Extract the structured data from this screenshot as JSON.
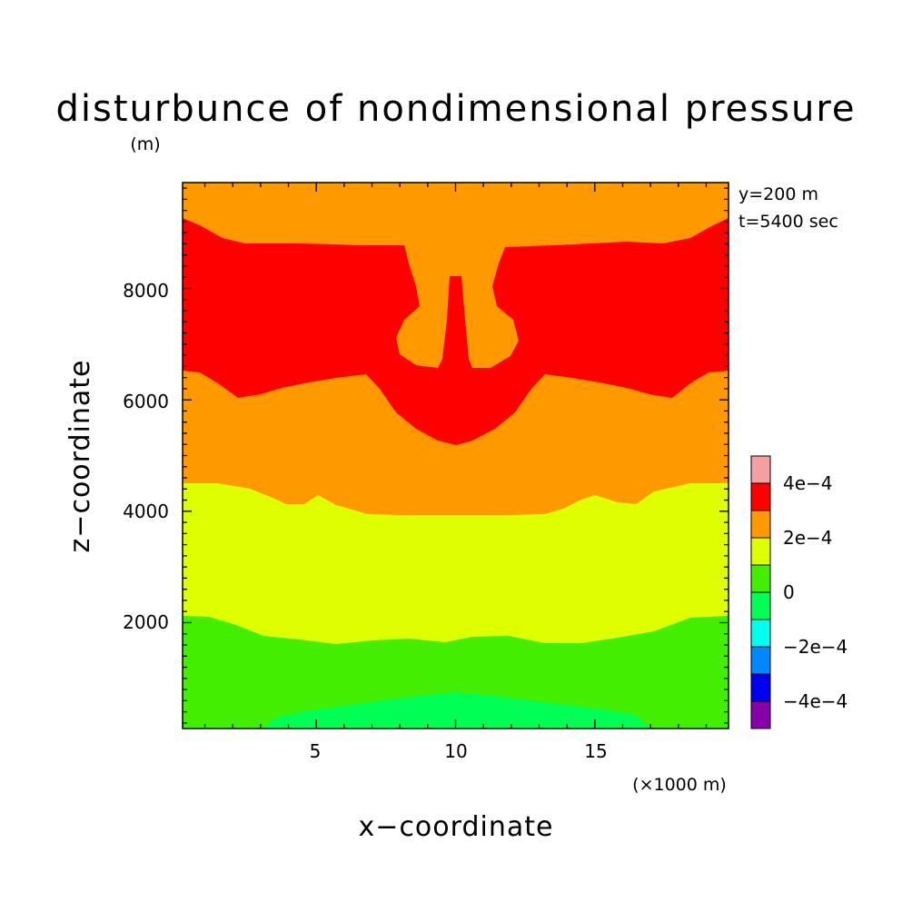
{
  "chart_data": {
    "type": "heatmap",
    "subtype": "filled-contour",
    "title": "disturbunce of nondimensional pressure",
    "xlabel": "x−coordinate",
    "ylabel": "z−coordinate",
    "x_unit": "(×1000 m)",
    "y_unit": "(m)",
    "xlim": [
      0.2,
      19.8
    ],
    "ylim": [
      100,
      9900
    ],
    "x_ticks": [
      {
        "value": 5,
        "label": "5"
      },
      {
        "value": 10,
        "label": "10"
      },
      {
        "value": 15,
        "label": "15"
      }
    ],
    "y_ticks": [
      {
        "value": 2000,
        "label": "2000"
      },
      {
        "value": 4000,
        "label": "4000"
      },
      {
        "value": 6000,
        "label": "6000"
      },
      {
        "value": 8000,
        "label": "8000"
      }
    ],
    "annotations": [
      "y=200 m",
      "t=5400 sec"
    ],
    "colorbar": {
      "levels": [
        {
          "from": 0.0004,
          "to": 0.0005,
          "color": "#f4a0a0"
        },
        {
          "from": 0.0003,
          "to": 0.0004,
          "color": "#ff0000"
        },
        {
          "from": 0.0002,
          "to": 0.0003,
          "color": "#ff9900"
        },
        {
          "from": 0.0001,
          "to": 0.0002,
          "color": "#ddff00"
        },
        {
          "from": 0,
          "to": 0.0001,
          "color": "#44ee00"
        },
        {
          "from": -0.0001,
          "to": 0,
          "color": "#00ff55"
        },
        {
          "from": -0.0002,
          "to": -0.0001,
          "color": "#00ffee"
        },
        {
          "from": -0.0003,
          "to": -0.0002,
          "color": "#0088ff"
        },
        {
          "from": -0.0004,
          "to": -0.0003,
          "color": "#0000ee"
        },
        {
          "from": -0.0005,
          "to": -0.0004,
          "color": "#8800aa"
        }
      ],
      "tick_labels": [
        {
          "value": 0.0004,
          "label": "4e−4"
        },
        {
          "value": 0.0002,
          "label": "2e−4"
        },
        {
          "value": 0,
          "label": "0"
        },
        {
          "value": -0.0002,
          "label": "−2e−4"
        },
        {
          "value": -0.0004,
          "label": "−4e−4"
        }
      ]
    },
    "regions": [
      {
        "level": "1e-4 to 2e-4",
        "color": "#ddff00",
        "x_range": [
          0.2,
          19.8
        ],
        "z_range": [
          2100,
          4500
        ]
      },
      {
        "level": "2e-4 to 3e-4",
        "color": "#ff9900",
        "x_range": [
          0.2,
          19.8
        ],
        "z_range": [
          3950,
          9900
        ]
      },
      {
        "level": "3e-4 to 4e-4",
        "color": "#ff0000",
        "x_range": [
          0.2,
          19.8
        ],
        "z_range": [
          5200,
          9300
        ]
      },
      {
        "level": "0 to 1e-4",
        "color": "#44ee00",
        "x_range": [
          0.2,
          19.8
        ],
        "z_range": [
          100,
          2100
        ]
      },
      {
        "level": "-1e-4 to 0",
        "color": "#00ff55",
        "x_range": [
          3.3,
          17.0
        ],
        "z_range": [
          100,
          750
        ]
      }
    ]
  }
}
